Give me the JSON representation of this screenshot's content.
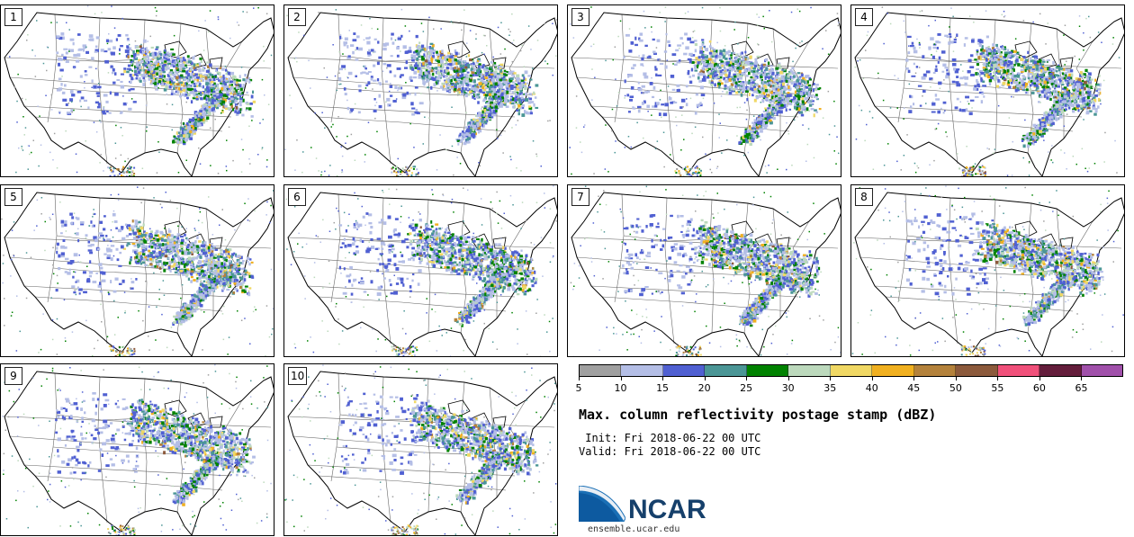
{
  "panels": [
    {
      "label": "1",
      "pattern": 0
    },
    {
      "label": "2",
      "pattern": 1
    },
    {
      "label": "3",
      "pattern": 2
    },
    {
      "label": "4",
      "pattern": 3
    },
    {
      "label": "5",
      "pattern": 0
    },
    {
      "label": "6",
      "pattern": 1
    },
    {
      "label": "7",
      "pattern": 2
    },
    {
      "label": "8",
      "pattern": 3
    },
    {
      "label": "9",
      "pattern": 0
    },
    {
      "label": "10",
      "pattern": 1
    }
  ],
  "colorbar": {
    "colors": [
      "#a0a0a0",
      "#b4bee6",
      "#5060d2",
      "#4b9696",
      "#008200",
      "#bcd9bc",
      "#f0d864",
      "#f0b020",
      "#b4823c",
      "#8c5a3c",
      "#f0507a",
      "#641e3c",
      "#a050aa"
    ],
    "ticks": [
      "5",
      "10",
      "15",
      "20",
      "25",
      "30",
      "35",
      "40",
      "45",
      "50",
      "55",
      "60",
      "65"
    ]
  },
  "title": "Max. column reflectivity postage stamp (dBZ)",
  "init": " Init: Fri 2018-06-22 00 UTC",
  "valid": "Valid: Fri 2018-06-22 00 UTC",
  "logo": {
    "text": "NCAR",
    "url": "ensemble.ucar.edu"
  }
}
